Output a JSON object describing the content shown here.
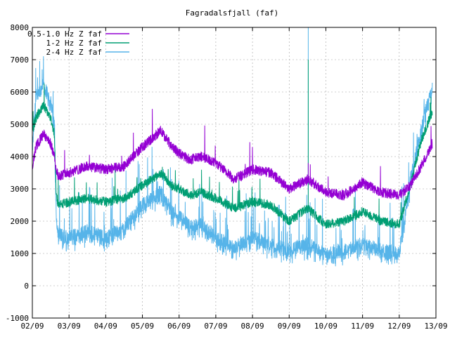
{
  "chart_data": {
    "type": "line",
    "title": "Fagradalsfjall (faf)",
    "xlabel": "",
    "ylabel": "",
    "x_ticks": [
      "02/09",
      "03/09",
      "04/09",
      "05/09",
      "06/09",
      "07/09",
      "08/09",
      "09/09",
      "10/09",
      "11/09",
      "12/09",
      "13/09"
    ],
    "ylim": [
      -1000,
      8000
    ],
    "y_ticks": [
      -1000,
      0,
      1000,
      2000,
      3000,
      4000,
      5000,
      6000,
      7000,
      8000
    ],
    "grid": true,
    "legend_position": "top-left",
    "x": [
      0.0,
      0.1,
      0.3,
      0.5,
      0.6,
      0.65,
      0.7,
      1.0,
      1.5,
      2.0,
      2.5,
      3.0,
      3.5,
      3.8,
      4.0,
      4.3,
      4.6,
      5.0,
      5.5,
      6.0,
      6.5,
      7.0,
      7.5,
      8.0,
      8.5,
      9.0,
      9.5,
      10.0,
      10.3,
      10.6,
      10.9
    ],
    "series": [
      {
        "name": "0.5-1.0 Hz Z faf",
        "color": "#9400d3",
        "values": [
          3700,
          4300,
          4700,
          4400,
          4000,
          3600,
          3400,
          3500,
          3700,
          3600,
          3700,
          4300,
          4800,
          4300,
          4100,
          3900,
          4000,
          3800,
          3300,
          3600,
          3500,
          3000,
          3300,
          2900,
          2800,
          3200,
          2900,
          2800,
          3100,
          3700,
          4400
        ]
      },
      {
        "name": "1-2 Hz Z faf",
        "color": "#009e73",
        "values": [
          4800,
          5200,
          5600,
          5200,
          4700,
          2900,
          2500,
          2600,
          2700,
          2600,
          2700,
          3100,
          3500,
          3100,
          3000,
          2800,
          2900,
          2700,
          2400,
          2600,
          2500,
          2000,
          2400,
          1900,
          2000,
          2300,
          2000,
          1900,
          3100,
          4500,
          5400
        ]
      },
      {
        "name": "2-4 Hz Z faf",
        "color": "#56b4e9",
        "values": [
          4200,
          5900,
          6200,
          5700,
          5000,
          2200,
          1600,
          1500,
          1700,
          1500,
          1800,
          2500,
          2900,
          2300,
          2200,
          1800,
          1900,
          1500,
          1200,
          1500,
          1300,
          1100,
          1300,
          1000,
          1100,
          1300,
          1100,
          1000,
          3200,
          4900,
          6100
        ]
      }
    ],
    "spikes": [
      {
        "x": 7.52,
        "series": "2-4 Hz Z faf",
        "value": 8000
      },
      {
        "x": 7.52,
        "series": "1-2 Hz Z faf",
        "value": 7000
      },
      {
        "x": 7.52,
        "series": "0.5-1.0 Hz Z faf",
        "value": 3800
      }
    ]
  }
}
